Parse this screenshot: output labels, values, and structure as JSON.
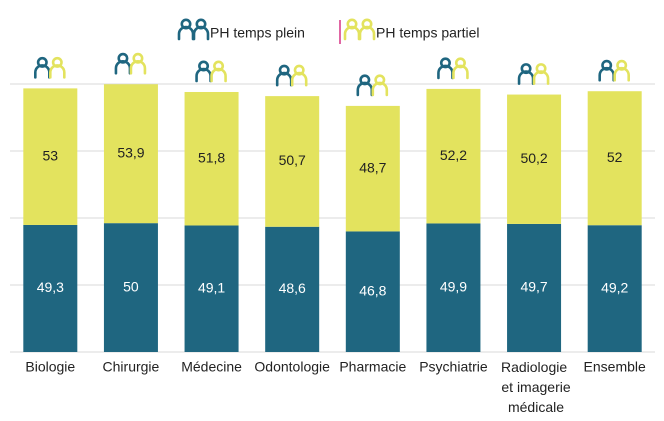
{
  "chart_data": {
    "type": "stacked_bar",
    "categories": [
      "Biologie",
      "Chirurgie",
      "Médecine",
      "Odontologie",
      "Pharmacie",
      "Psychiatrie",
      "Radiologie et imagerie médicale",
      "Ensemble"
    ],
    "series": [
      {
        "name": "PH temps plein",
        "color": "#1f6680",
        "values": [
          49.3,
          50,
          49.1,
          48.6,
          46.8,
          49.9,
          49.7,
          49.2
        ],
        "value_labels": [
          "49,3",
          "50",
          "49,1",
          "48,6",
          "46,8",
          "49,9",
          "49,7",
          "49,2"
        ]
      },
      {
        "name": "PH temps partiel",
        "color": "#e3e35e",
        "values": [
          53,
          53.9,
          51.8,
          50.7,
          48.7,
          52.2,
          50.2,
          52
        ],
        "value_labels": [
          "53",
          "53,9",
          "51,8",
          "50,7",
          "48,7",
          "52,2",
          "50,2",
          "52"
        ]
      }
    ],
    "ylim": [
      0,
      104
    ],
    "yticks": [
      0,
      26,
      52,
      78,
      104
    ],
    "grid": true
  }
}
